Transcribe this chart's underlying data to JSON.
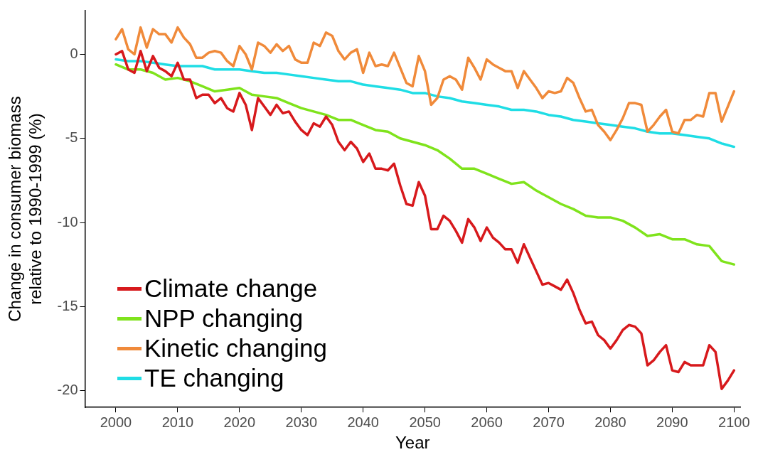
{
  "chart_data": {
    "type": "line",
    "xlabel": "Year",
    "ylabel": "Change in consumer biomass\nrelative to 1990-1999 (%)",
    "xlim": [
      1995,
      2101
    ],
    "xticks": [
      2000,
      2010,
      2020,
      2030,
      2040,
      2050,
      2060,
      2070,
      2080,
      2090,
      2100
    ],
    "ylim": [
      -21,
      2.6
    ],
    "yticks": [
      -20,
      -15,
      -10,
      -5,
      0
    ],
    "grid": false,
    "legend": "bottom left",
    "marker": "none",
    "line_style": "solid",
    "series": [
      {
        "name": "Climate change",
        "color": "#d7191c",
        "x": [
          2000,
          2001,
          2002,
          2003,
          2004,
          2005,
          2006,
          2007,
          2008,
          2009,
          2010,
          2011,
          2012,
          2013,
          2014,
          2015,
          2016,
          2017,
          2018,
          2019,
          2020,
          2021,
          2022,
          2023,
          2024,
          2025,
          2026,
          2027,
          2028,
          2029,
          2030,
          2031,
          2032,
          2033,
          2034,
          2035,
          2036,
          2037,
          2038,
          2039,
          2040,
          2041,
          2042,
          2043,
          2044,
          2045,
          2046,
          2047,
          2048,
          2049,
          2050,
          2051,
          2052,
          2053,
          2054,
          2055,
          2056,
          2057,
          2058,
          2059,
          2060,
          2061,
          2062,
          2063,
          2064,
          2065,
          2066,
          2067,
          2068,
          2069,
          2070,
          2071,
          2072,
          2073,
          2074,
          2075,
          2076,
          2077,
          2078,
          2079,
          2080,
          2081,
          2082,
          2083,
          2084,
          2085,
          2086,
          2087,
          2088,
          2089,
          2090,
          2091,
          2092,
          2093,
          2094,
          2095,
          2096,
          2097,
          2098,
          2099,
          2100
        ],
        "values": [
          0,
          0.2,
          -0.9,
          -1.1,
          0.2,
          -1.0,
          -0.1,
          -0.8,
          -1.0,
          -1.3,
          -0.5,
          -1.5,
          -1.5,
          -2.6,
          -2.4,
          -2.4,
          -2.9,
          -2.6,
          -3.2,
          -3.4,
          -2.3,
          -3.0,
          -4.5,
          -2.6,
          -3.1,
          -3.6,
          -3.0,
          -3.5,
          -3.4,
          -4.0,
          -4.5,
          -4.8,
          -4.1,
          -4.3,
          -3.7,
          -4.2,
          -5.2,
          -5.7,
          -5.2,
          -5.6,
          -6.4,
          -5.9,
          -6.8,
          -6.8,
          -6.9,
          -6.5,
          -7.8,
          -8.9,
          -9.0,
          -7.6,
          -8.4,
          -10.4,
          -10.4,
          -9.6,
          -9.9,
          -10.5,
          -11.2,
          -9.8,
          -10.3,
          -11.1,
          -10.3,
          -10.9,
          -11.2,
          -11.6,
          -11.6,
          -12.4,
          -11.3,
          -12.1,
          -12.9,
          -13.7,
          -13.6,
          -13.8,
          -14.0,
          -13.4,
          -14.2,
          -15.2,
          -16.0,
          -15.9,
          -16.7,
          -17.0,
          -17.5,
          -17.0,
          -16.4,
          -16.1,
          -16.2,
          -16.6,
          -18.5,
          -18.2,
          -17.7,
          -17.3,
          -18.8,
          -18.9,
          -18.3,
          -18.5,
          -18.5,
          -18.5,
          -17.3,
          -17.7,
          -19.9,
          -19.4,
          -18.8
        ]
      },
      {
        "name": "NPP changing",
        "color": "#7fe31c",
        "x": [
          2000,
          2002,
          2004,
          2006,
          2008,
          2010,
          2012,
          2014,
          2016,
          2018,
          2020,
          2022,
          2024,
          2026,
          2028,
          2030,
          2032,
          2034,
          2036,
          2038,
          2040,
          2042,
          2044,
          2046,
          2048,
          2050,
          2052,
          2054,
          2056,
          2058,
          2060,
          2062,
          2064,
          2066,
          2068,
          2070,
          2072,
          2074,
          2076,
          2078,
          2080,
          2082,
          2084,
          2086,
          2088,
          2090,
          2092,
          2094,
          2096,
          2098,
          2100
        ],
        "values": [
          -0.6,
          -0.9,
          -0.9,
          -1.1,
          -1.5,
          -1.4,
          -1.6,
          -1.9,
          -2.2,
          -2.1,
          -2.0,
          -2.4,
          -2.5,
          -2.6,
          -2.9,
          -3.2,
          -3.4,
          -3.6,
          -3.9,
          -3.9,
          -4.2,
          -4.5,
          -4.6,
          -5.0,
          -5.2,
          -5.4,
          -5.7,
          -6.2,
          -6.8,
          -6.8,
          -7.1,
          -7.4,
          -7.7,
          -7.6,
          -8.1,
          -8.5,
          -8.9,
          -9.2,
          -9.6,
          -9.7,
          -9.7,
          -9.9,
          -10.3,
          -10.8,
          -10.7,
          -11.0,
          -11.0,
          -11.3,
          -11.4,
          -12.3,
          -12.5
        ]
      },
      {
        "name": "Kinetic changing",
        "color": "#f08a3a",
        "x": [
          2000,
          2001,
          2002,
          2003,
          2004,
          2005,
          2006,
          2007,
          2008,
          2009,
          2010,
          2011,
          2012,
          2013,
          2014,
          2015,
          2016,
          2017,
          2018,
          2019,
          2020,
          2021,
          2022,
          2023,
          2024,
          2025,
          2026,
          2027,
          2028,
          2029,
          2030,
          2031,
          2032,
          2033,
          2034,
          2035,
          2036,
          2037,
          2038,
          2039,
          2040,
          2041,
          2042,
          2043,
          2044,
          2045,
          2046,
          2047,
          2048,
          2049,
          2050,
          2051,
          2052,
          2053,
          2054,
          2055,
          2056,
          2057,
          2058,
          2059,
          2060,
          2061,
          2062,
          2063,
          2064,
          2065,
          2066,
          2067,
          2068,
          2069,
          2070,
          2071,
          2072,
          2073,
          2074,
          2075,
          2076,
          2077,
          2078,
          2079,
          2080,
          2081,
          2082,
          2083,
          2084,
          2085,
          2086,
          2087,
          2088,
          2089,
          2090,
          2091,
          2092,
          2093,
          2094,
          2095,
          2096,
          2097,
          2098,
          2099,
          2100
        ],
        "values": [
          0.9,
          1.5,
          0.3,
          0.0,
          1.6,
          0.4,
          1.5,
          1.2,
          1.2,
          0.7,
          1.6,
          1.0,
          0.6,
          -0.2,
          -0.2,
          0.1,
          0.2,
          0.1,
          -0.4,
          -0.7,
          0.5,
          0.0,
          -0.9,
          0.7,
          0.5,
          0.1,
          0.6,
          0.2,
          0.5,
          -0.3,
          -0.5,
          -0.5,
          0.7,
          0.5,
          1.3,
          1.1,
          0.2,
          -0.3,
          0.1,
          0.3,
          -1.1,
          0.1,
          -0.7,
          -0.6,
          -0.7,
          0.1,
          -0.8,
          -1.7,
          -1.9,
          -0.1,
          -1.0,
          -3.0,
          -2.6,
          -1.5,
          -1.3,
          -1.5,
          -2.1,
          -0.2,
          -0.8,
          -1.5,
          -0.3,
          -0.6,
          -0.8,
          -1.0,
          -1.0,
          -2.0,
          -1.0,
          -1.5,
          -2.0,
          -2.6,
          -2.2,
          -2.3,
          -2.2,
          -1.4,
          -1.7,
          -2.6,
          -3.4,
          -3.3,
          -4.2,
          -4.6,
          -5.1,
          -4.5,
          -3.8,
          -2.9,
          -2.9,
          -3.0,
          -4.6,
          -4.2,
          -3.7,
          -3.3,
          -4.6,
          -4.7,
          -3.9,
          -3.9,
          -3.6,
          -3.7,
          -2.3,
          -2.3,
          -4.0,
          -3.1,
          -2.2
        ]
      },
      {
        "name": "TE changing",
        "color": "#1fdde5",
        "x": [
          2000,
          2002,
          2004,
          2006,
          2008,
          2010,
          2012,
          2014,
          2016,
          2018,
          2020,
          2022,
          2024,
          2026,
          2028,
          2030,
          2032,
          2034,
          2036,
          2038,
          2040,
          2042,
          2044,
          2046,
          2048,
          2050,
          2052,
          2054,
          2056,
          2058,
          2060,
          2062,
          2064,
          2066,
          2068,
          2070,
          2072,
          2074,
          2076,
          2078,
          2080,
          2082,
          2084,
          2086,
          2088,
          2090,
          2092,
          2094,
          2096,
          2098,
          2100
        ],
        "values": [
          -0.3,
          -0.4,
          -0.4,
          -0.5,
          -0.6,
          -0.7,
          -0.7,
          -0.7,
          -0.9,
          -0.9,
          -0.9,
          -1.0,
          -1.1,
          -1.1,
          -1.2,
          -1.3,
          -1.4,
          -1.5,
          -1.6,
          -1.6,
          -1.8,
          -1.9,
          -2.0,
          -2.1,
          -2.3,
          -2.3,
          -2.5,
          -2.6,
          -2.8,
          -2.9,
          -3.0,
          -3.1,
          -3.3,
          -3.3,
          -3.4,
          -3.6,
          -3.7,
          -3.9,
          -4.0,
          -4.1,
          -4.2,
          -4.3,
          -4.4,
          -4.6,
          -4.7,
          -4.7,
          -4.8,
          -4.9,
          -5.0,
          -5.3,
          -5.5
        ]
      }
    ]
  }
}
